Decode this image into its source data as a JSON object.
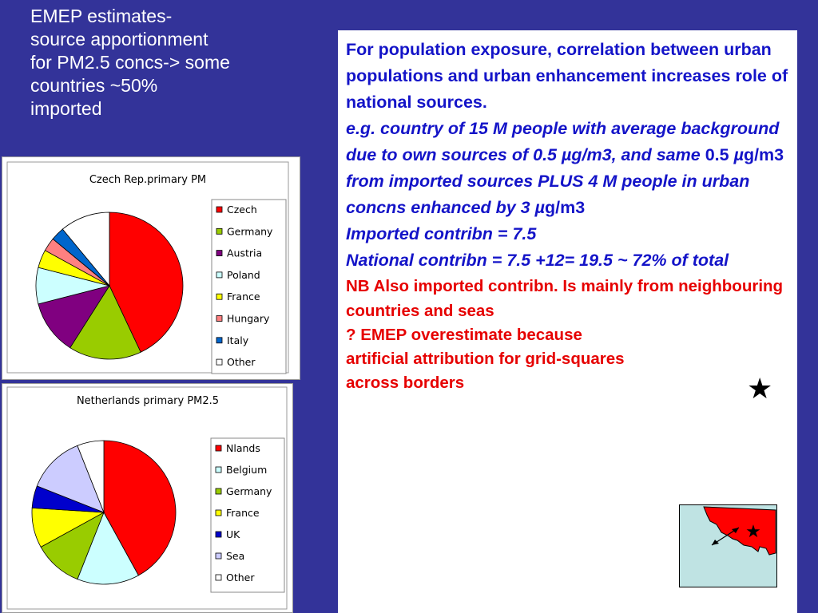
{
  "slide_title": {
    "line1": "EMEP estimates-",
    "line2": "source apportionment",
    "line3": "for PM2.5 concs-> some",
    "line4": "countries ~50%",
    "line5": "imported"
  },
  "text_panel": {
    "para_exposure": "For population exposure, correlation between urban populations and urban enhancement increases role of national sources.",
    "para_example_a": "e.g. country of 15 M people with average background due to own sources of 0.5 ",
    "para_example_mu1": "µ",
    "para_example_b": "g/m3, and same  ",
    "para_example_c": "0.5 ",
    "para_example_mu2": "µ",
    "para_example_d": "g/m3",
    "para_example_e": " from imported sources   PLUS  4 M people in urban concns enhanced by 3 ",
    "para_example_mu3": "µ",
    "para_example_f": "g/m3",
    "para_imported": "Imported contribn = 7.5",
    "para_national": "National contribn = 7.5 +12= 19.5    ~ 72% of total",
    "para_nb": "NB Also imported contribn. Is mainly from neighbouring countries and seas",
    "para_emep": "? EMEP overestimate because artificial attribution for grid-squares  across borders"
  },
  "icons": {
    "star": "★",
    "star_icon_name": "star-icon",
    "map_icon_name": "border-map-icon",
    "arrow_icon_name": "double-arrow-icon"
  },
  "colors": {
    "background": "#333399",
    "text_blue": "#1414c8",
    "text_red": "#e60000",
    "map_sea": "#bfe3e3"
  },
  "chart_data": [
    {
      "type": "pie",
      "title": "Czech Rep.primary PM",
      "legend_position": "right",
      "start_angle_deg": 0,
      "slices": [
        {
          "label": "Czech",
          "value": 43,
          "color": "#ff0000"
        },
        {
          "label": "Germany",
          "value": 16,
          "color": "#99cc00"
        },
        {
          "label": "Austria",
          "value": 12,
          "color": "#800080"
        },
        {
          "label": "Poland",
          "value": 8,
          "color": "#ccffff"
        },
        {
          "label": "France",
          "value": 4,
          "color": "#ffff00"
        },
        {
          "label": "Hungary",
          "value": 3,
          "color": "#ff8080"
        },
        {
          "label": "Italy",
          "value": 3,
          "color": "#0066cc"
        },
        {
          "label": "Other",
          "value": 11,
          "color": "#ffffff"
        }
      ]
    },
    {
      "type": "pie",
      "title": "Netherlands primary PM2.5",
      "legend_position": "right",
      "start_angle_deg": 0,
      "slices": [
        {
          "label": "Nlands",
          "value": 42,
          "color": "#ff0000"
        },
        {
          "label": "Belgium",
          "value": 14,
          "color": "#ccffff"
        },
        {
          "label": "Germany",
          "value": 11,
          "color": "#99cc00"
        },
        {
          "label": "France",
          "value": 9,
          "color": "#ffff00"
        },
        {
          "label": "UK",
          "value": 5,
          "color": "#0000cc"
        },
        {
          "label": "Sea",
          "value": 13,
          "color": "#ccccff"
        },
        {
          "label": "Other",
          "value": 6,
          "color": "#ffffff"
        }
      ]
    }
  ]
}
